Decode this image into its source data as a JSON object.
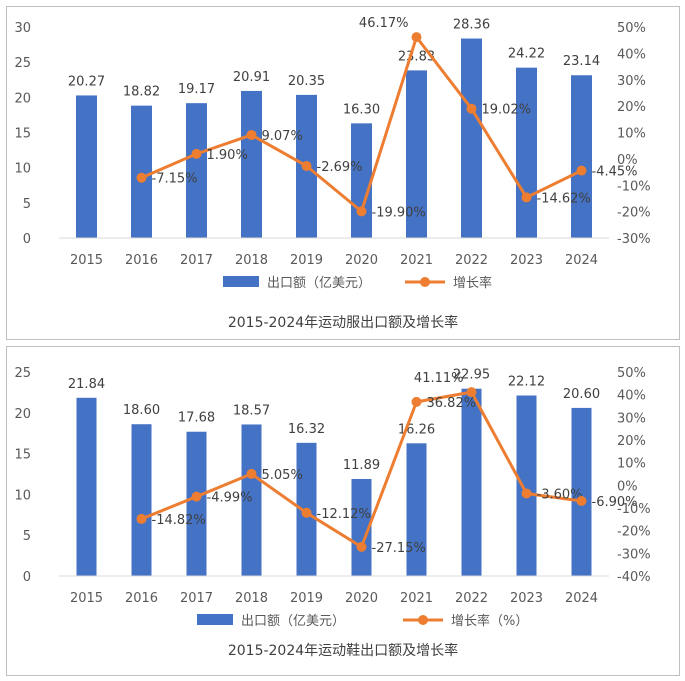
{
  "chart_data": [
    {
      "type": "bar+line",
      "title": "2015-2024年运动服出口额及增长率",
      "categories": [
        "2015",
        "2016",
        "2017",
        "2018",
        "2019",
        "2020",
        "2021",
        "2022",
        "2023",
        "2024"
      ],
      "series": [
        {
          "name": "出口额（亿美元）",
          "type": "bar",
          "axis": "left",
          "values": [
            20.27,
            18.82,
            19.17,
            20.91,
            20.35,
            16.3,
            23.83,
            28.36,
            24.22,
            23.14
          ],
          "labels": [
            "20.27",
            "18.82",
            "19.17",
            "20.91",
            "20.35",
            "16.30",
            "23.83",
            "28.36",
            "24.22",
            "23.14"
          ]
        },
        {
          "name": "增长率",
          "type": "line",
          "axis": "right",
          "values": [
            null,
            -7.15,
            1.9,
            9.07,
            -2.69,
            -19.9,
            46.17,
            19.02,
            -14.62,
            -4.45
          ],
          "labels": [
            "",
            "-7.15%",
            "1.90%",
            "9.07%",
            "-2.69%",
            "-19.90%",
            "46.17%",
            "19.02%",
            "-14.62%",
            "-4.45%"
          ]
        }
      ],
      "ylim_left": [
        0,
        30
      ],
      "yticks_left": [
        "0",
        "5",
        "10",
        "15",
        "20",
        "25",
        "30"
      ],
      "ylim_right": [
        -30,
        50
      ],
      "yticks_right": [
        "-30%",
        "-20%",
        "-10%",
        "0%",
        "10%",
        "20%",
        "30%",
        "40%",
        "50%"
      ],
      "legend_position": "bottom",
      "colors": {
        "bar": "#4472c4",
        "line": "#ed7d31"
      }
    },
    {
      "type": "bar+line",
      "title": "2015-2024年运动鞋出口额及增长率",
      "categories": [
        "2015",
        "2016",
        "2017",
        "2018",
        "2019",
        "2020",
        "2021",
        "2022",
        "2023",
        "2024"
      ],
      "series": [
        {
          "name": "出口额（亿美元）",
          "type": "bar",
          "axis": "left",
          "values": [
            21.84,
            18.6,
            17.68,
            18.57,
            16.32,
            11.89,
            16.26,
            22.95,
            22.12,
            20.6
          ],
          "labels": [
            "21.84",
            "18.60",
            "17.68",
            "18.57",
            "16.32",
            "11.89",
            "16.26",
            "22.95",
            "22.12",
            "20.60"
          ]
        },
        {
          "name": "增长率（%）",
          "type": "line",
          "axis": "right",
          "values": [
            null,
            -14.82,
            -4.99,
            5.05,
            -12.12,
            -27.15,
            36.82,
            41.11,
            -3.6,
            -6.9
          ],
          "labels": [
            "",
            "-14.82%",
            "-4.99%",
            "5.05%",
            "-12.12%",
            "-27.15%",
            "36.82%",
            "41.11%",
            "-3.60%",
            "-6.90%"
          ]
        }
      ],
      "ylim_left": [
        0,
        25
      ],
      "yticks_left": [
        "0",
        "5",
        "10",
        "15",
        "20",
        "25"
      ],
      "ylim_right": [
        -40,
        50
      ],
      "yticks_right": [
        "-40%",
        "-30%",
        "-20%",
        "-10%",
        "0%",
        "10%",
        "20%",
        "30%",
        "40%",
        "50%"
      ],
      "legend_position": "bottom",
      "colors": {
        "bar": "#4472c4",
        "line": "#ed7d31"
      }
    }
  ]
}
